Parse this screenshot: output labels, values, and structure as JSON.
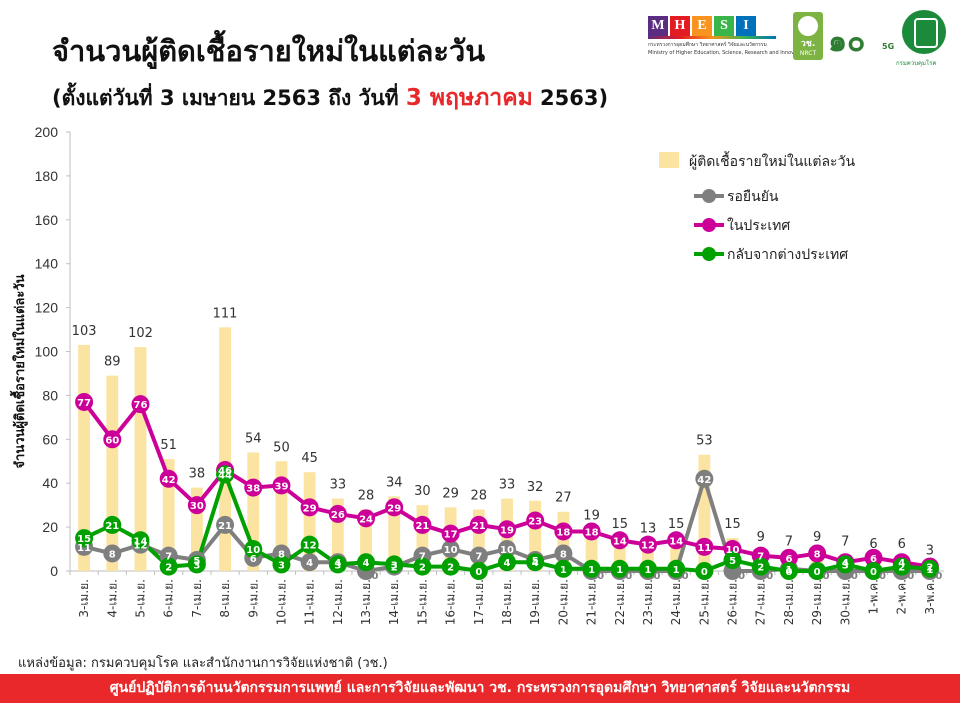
{
  "header": {
    "title": "จำนวนผู้ติดเชื้อรายใหม่ในแต่ละวัน",
    "subtitle_pre": "(ตั้งแต่วันที่ 3 เมษายน 2563 ถึง วันที่ ",
    "subtitle_highlight": "3 พฤษภาคม",
    "subtitle_post": " 2563)"
  },
  "logos": {
    "mhesi_letters": [
      "M",
      "H",
      "E",
      "S",
      "I"
    ],
    "mhesi_colors": [
      "#5a2d82",
      "#e31b23",
      "#f7931e",
      "#39b54a",
      "#0072bc"
    ],
    "mhesi_caption": "กระทรวงการอุดมศึกษา วิทยาศาสตร์ วิจัยและนวัตกรรม",
    "mhesi_caption_en": "Ministry of Higher Education, Science, Research and Innovation",
    "nrct_label": "วช.",
    "nrct_sub": "NRCT",
    "thirty_label": "๑๐",
    "fiveg_label": "5G",
    "ddc_caption": "กรมควบคุมโรค"
  },
  "chart_data": {
    "type": "bar",
    "title": "จำนวนผู้ติดเชื้อรายใหม่ในแต่ละวัน",
    "ylabel": "จำนวนผู้ติดเชื้อรายใหม่ในแต่ละวัน",
    "xlabel": "",
    "ylim": [
      0,
      200
    ],
    "yticks": [
      0,
      20,
      40,
      60,
      80,
      100,
      120,
      140,
      160,
      180,
      200
    ],
    "grid": false,
    "legend_position": "top-right",
    "categories": [
      "3-เม.ย.",
      "4-เม.ย.",
      "5-เม.ย.",
      "6-เม.ย.",
      "7-เม.ย.",
      "8-เม.ย.",
      "9-เม.ย.",
      "10-เม.ย.",
      "11-เม.ย.",
      "12-เม.ย.",
      "13-เม.ย.",
      "14-เม.ย.",
      "15-เม.ย.",
      "16-เม.ย.",
      "17-เม.ย.",
      "18-เม.ย.",
      "19-เม.ย.",
      "20-เม.ย.",
      "21-เม.ย.",
      "22-เม.ย.",
      "23-เม.ย.",
      "24-เม.ย.",
      "25-เม.ย.",
      "26-เม.ย.",
      "27-เม.ย.",
      "28-เม.ย.",
      "29-เม.ย.",
      "30-เม.ย.",
      "1-พ.ค.",
      "2-พ.ค.",
      "3-พ.ค."
    ],
    "series": [
      {
        "name": "ผู้ติดเชื้อรายใหม่ในแต่ละวัน",
        "kind": "bar",
        "color": "#fbe3a1",
        "values": [
          103,
          89,
          102,
          51,
          38,
          111,
          54,
          50,
          45,
          33,
          28,
          34,
          30,
          29,
          28,
          33,
          32,
          27,
          19,
          15,
          13,
          15,
          53,
          15,
          9,
          7,
          9,
          7,
          6,
          6,
          3
        ]
      },
      {
        "name": "รอยืนยัน",
        "kind": "line",
        "color": "#7f7f7f",
        "values": [
          11,
          8,
          12,
          7,
          5,
          21,
          6,
          8,
          4,
          4,
          0,
          2,
          7,
          10,
          7,
          10,
          5,
          8,
          0,
          0,
          0,
          0,
          42,
          0,
          0,
          1,
          0,
          0,
          0,
          0,
          0
        ]
      },
      {
        "name": "ในประเทศ",
        "kind": "line",
        "color": "#cc0099",
        "values": [
          77,
          60,
          76,
          42,
          30,
          46,
          38,
          39,
          29,
          26,
          24,
          29,
          21,
          17,
          21,
          19,
          23,
          18,
          18,
          14,
          12,
          14,
          11,
          10,
          7,
          6,
          8,
          4,
          6,
          4,
          2
        ]
      },
      {
        "name": "กลับจากต่างประเทศ",
        "kind": "line",
        "color": "#00a000",
        "values": [
          15,
          21,
          14,
          2,
          3,
          44,
          10,
          3,
          12,
          3,
          4,
          3,
          2,
          2,
          0,
          4,
          4,
          1,
          1,
          1,
          1,
          1,
          0,
          5,
          2,
          0,
          0,
          3,
          0,
          2,
          1
        ]
      }
    ]
  },
  "source_text": "แหล่งข้อมูล: กรมควบคุมโรค และสำนักงานการวิจัยแห่งชาติ (วช.)",
  "footer_text": "ศูนย์ปฏิบัติการด้านนวัตกรรมการแพทย์ และการวิจัยและพัฒนา   วช.   กระทรวงการอุดมศึกษา วิทยาศาสตร์ วิจัยและนวัตกรรม"
}
